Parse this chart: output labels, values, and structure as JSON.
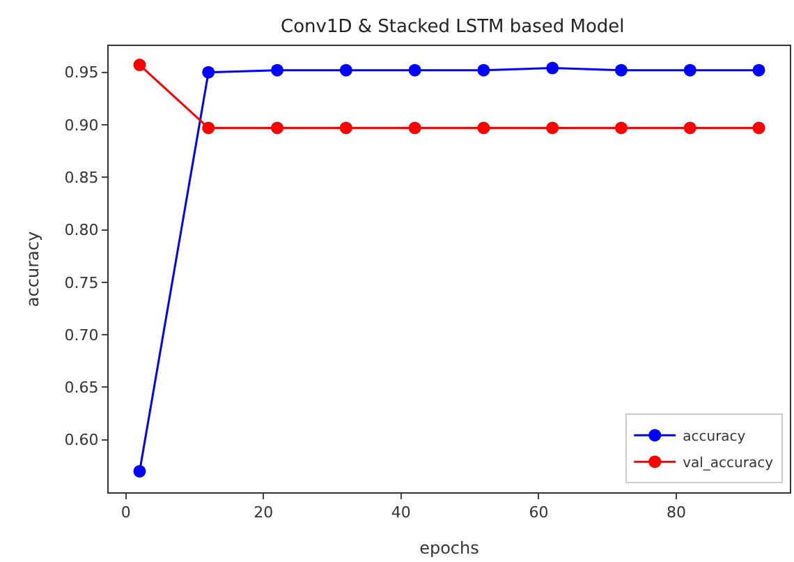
{
  "chart_data": {
    "type": "line",
    "title": "Conv1D & Stacked LSTM based Model",
    "xlabel": "epochs",
    "ylabel": "accuracy",
    "x": [
      2,
      12,
      22,
      32,
      42,
      52,
      62,
      72,
      82,
      92
    ],
    "series": [
      {
        "name": "accuracy",
        "color": "#0000ff",
        "values": [
          0.57,
          0.95,
          0.952,
          0.952,
          0.952,
          0.952,
          0.954,
          0.952,
          0.952,
          0.952
        ]
      },
      {
        "name": "val_accuracy",
        "color": "#ff0000",
        "values": [
          0.957,
          0.897,
          0.897,
          0.897,
          0.897,
          0.897,
          0.897,
          0.897,
          0.897,
          0.897
        ]
      }
    ],
    "xlim": [
      -2.5,
      96.5
    ],
    "xticks": [
      0,
      20,
      40,
      60,
      80
    ],
    "ylim": [
      0.55,
      0.975
    ],
    "yticks": [
      {
        "value": 0.6,
        "label": "0.60"
      },
      {
        "value": 0.65,
        "label": "0.65"
      },
      {
        "value": 0.7,
        "label": "0.70"
      },
      {
        "value": 0.75,
        "label": "0.75"
      },
      {
        "value": 0.8,
        "label": "0.80"
      },
      {
        "value": 0.85,
        "label": "0.85"
      },
      {
        "value": 0.9,
        "label": "0.90"
      },
      {
        "value": 0.95,
        "label": "0.95"
      }
    ],
    "legend": "bottom right",
    "marker": "circle",
    "line_style": "solid"
  }
}
